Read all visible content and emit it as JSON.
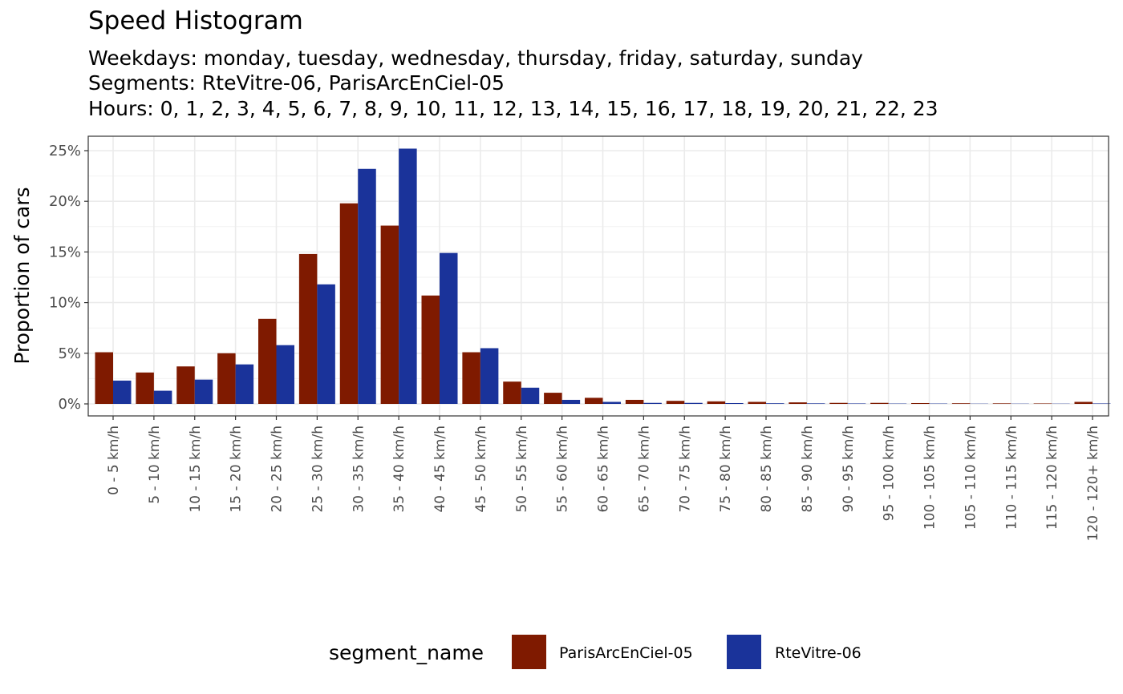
{
  "chart_data": {
    "type": "bar",
    "title": "Speed Histogram",
    "subtitle_lines": [
      "Weekdays: monday, tuesday, wednesday, thursday, friday, saturday, sunday",
      "Segments: RteVitre-06, ParisArcEnCiel-05",
      "Hours: 0, 1, 2, 3, 4, 5, 6, 7, 8, 9, 10, 11, 12, 13, 14, 15, 16, 17, 18, 19, 20, 21, 22, 23"
    ],
    "xlabel": "",
    "ylabel": "Proportion of cars",
    "ylim": [
      0,
      0.265
    ],
    "y_ticks": [
      0,
      0.05,
      0.1,
      0.15,
      0.2,
      0.25
    ],
    "y_tick_labels": [
      "0%",
      "5%",
      "10%",
      "15%",
      "20%",
      "25%"
    ],
    "grid": true,
    "categories": [
      "0 - 5 km/h",
      "5 - 10 km/h",
      "10 - 15 km/h",
      "15 - 20 km/h",
      "20 - 25 km/h",
      "25 - 30 km/h",
      "30 - 35 km/h",
      "35 - 40 km/h",
      "40 - 45 km/h",
      "45 - 50 km/h",
      "50 - 55 km/h",
      "55 - 60 km/h",
      "60 - 65 km/h",
      "65 - 70 km/h",
      "70 - 75 km/h",
      "75 - 80 km/h",
      "80 - 85 km/h",
      "85 - 90 km/h",
      "90 - 95 km/h",
      "95 - 100 km/h",
      "100 - 105 km/h",
      "105 - 110 km/h",
      "110 - 115 km/h",
      "115 - 120 km/h",
      "120 - 120+ km/h"
    ],
    "series": [
      {
        "name": "ParisArcEnCiel-05",
        "color": "#7f1a00",
        "values": [
          0.051,
          0.031,
          0.037,
          0.05,
          0.084,
          0.148,
          0.198,
          0.176,
          0.107,
          0.051,
          0.022,
          0.011,
          0.006,
          0.004,
          0.003,
          0.0025,
          0.002,
          0.0015,
          0.001,
          0.001,
          0.0008,
          0.0006,
          0.0005,
          0.0004,
          0.002
        ]
      },
      {
        "name": "RteVitre-06",
        "color": "#1a339a",
        "values": [
          0.023,
          0.013,
          0.024,
          0.039,
          0.058,
          0.118,
          0.232,
          0.252,
          0.149,
          0.055,
          0.016,
          0.004,
          0.002,
          0.001,
          0.001,
          0.0008,
          0.0006,
          0.0005,
          0.0004,
          0.0003,
          0.0003,
          0.0002,
          0.0002,
          0.0002,
          0.0004
        ]
      }
    ],
    "legend": {
      "title": "segment_name",
      "position": "bottom"
    }
  }
}
